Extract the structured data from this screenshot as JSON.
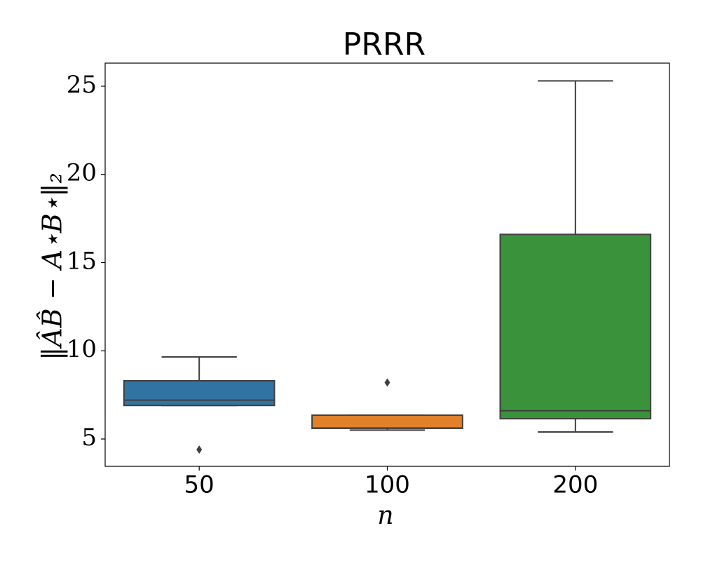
{
  "chart_data": {
    "type": "box",
    "title": "PRRR",
    "x_label": "n",
    "y_label": "‖ÂB̂ − A⋆B⋆‖₂",
    "categories": [
      "50",
      "100",
      "200"
    ],
    "boxes": [
      {
        "whislo": 6.9,
        "q1": 6.9,
        "median": 7.2,
        "q3": 8.3,
        "whishi": 9.65,
        "fliers": [
          4.4
        ],
        "color": "#3274a1"
      },
      {
        "whislo": 5.5,
        "q1": 5.6,
        "median": 5.62,
        "q3": 6.35,
        "whishi": 6.35,
        "fliers": [
          8.2
        ],
        "color": "#e1812c"
      },
      {
        "whislo": 5.4,
        "q1": 6.15,
        "median": 6.6,
        "q3": 16.6,
        "whishi": 25.3,
        "fliers": [],
        "color": "#3a923a"
      }
    ],
    "edge_color": "#3f3f3f",
    "ylim": [
      3.45,
      26.31
    ],
    "yticks": [
      5,
      10,
      15,
      20,
      25
    ],
    "grid": false
  }
}
